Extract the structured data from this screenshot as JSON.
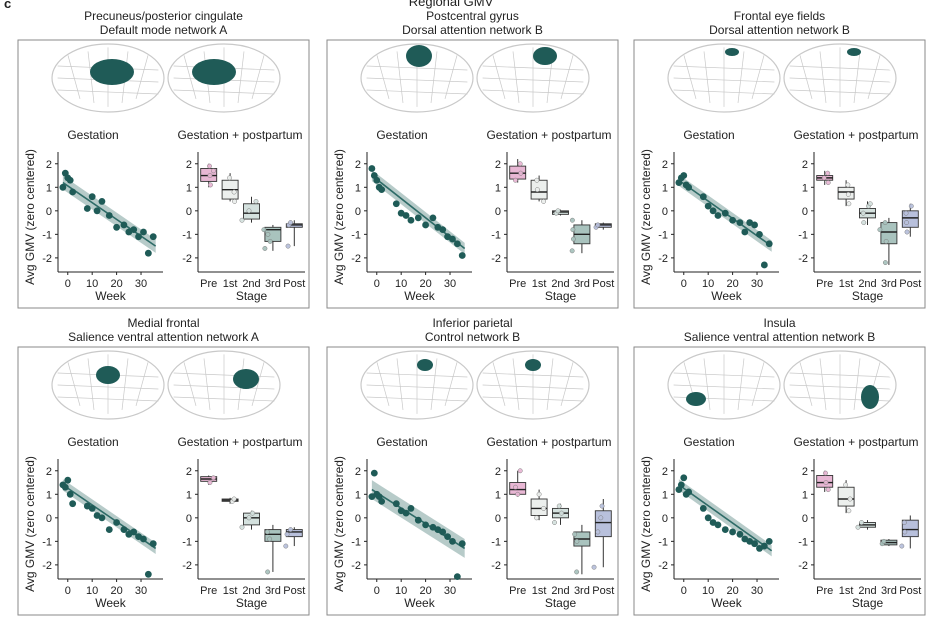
{
  "figure": {
    "panel_letter": "c",
    "header": "Regional GMV",
    "y_axis_label": "Avg GMV (zero centered)",
    "week_label": "Week",
    "stage_label": "Stage",
    "subplot_titles": [
      "Gestation",
      "Gestation + postpartum"
    ],
    "colors": {
      "dot": "#1f5b57",
      "regression_line": "#2e6b67",
      "ci_band": "#9fbab7",
      "brain_outline": "#c9c9c9",
      "highlight": "#1f5b57",
      "frame": "#8a8a8a",
      "stage_boxes": [
        "#e8b7d4",
        "#ecefed",
        "#d4e1de",
        "#a9c3be",
        "#b8c0dc"
      ]
    }
  },
  "chart_data": [
    {
      "type": "scatter+box",
      "title": "Precuneus/posterior cingulate",
      "network": "Default mode network A",
      "highlight": {
        "left": "medial-posterior",
        "right": "medial-posterior"
      },
      "scatter": {
        "xlabel": "Week",
        "ylabel": "Avg GMV (zero centered)",
        "xticks": [
          0,
          10,
          20,
          30
        ],
        "xlim": [
          -4,
          39
        ],
        "yticks": [
          -2,
          -1,
          0,
          1,
          2
        ],
        "ylim": [
          -2.6,
          2.5
        ],
        "x": [
          -2,
          -1,
          0,
          1,
          2,
          8,
          10,
          12,
          14,
          17,
          20,
          23,
          25,
          27,
          29,
          31,
          33,
          35
        ],
        "y": [
          1.0,
          1.6,
          1.4,
          1.3,
          0.8,
          0.1,
          0.6,
          0.0,
          0.4,
          -0.2,
          -0.7,
          -0.6,
          -0.9,
          -0.8,
          -1.1,
          -0.9,
          -1.8,
          -1.1
        ],
        "fit": {
          "x0": -2,
          "y0": 1.2,
          "x1": 36,
          "y1": -1.5
        },
        "ci": 0.18
      },
      "box": {
        "categories": [
          "Pre",
          "1st",
          "2nd",
          "3rd",
          "Post"
        ],
        "ylim": [
          -2.6,
          2.5
        ],
        "stats": [
          {
            "min": 1.0,
            "q1": 1.25,
            "med": 1.5,
            "q3": 1.8,
            "max": 2.0,
            "pts": [
              1.1,
              1.5,
              1.7,
              1.9
            ]
          },
          {
            "min": 0.4,
            "q1": 0.5,
            "med": 0.9,
            "q3": 1.3,
            "max": 1.6,
            "pts": [
              0.4,
              0.8,
              1.4
            ]
          },
          {
            "min": -0.5,
            "q1": -0.35,
            "med": -0.1,
            "q3": 0.3,
            "max": 0.6,
            "pts": [
              -0.4,
              0.0,
              0.4
            ]
          },
          {
            "min": -1.7,
            "q1": -1.3,
            "med": -0.8,
            "q3": -0.7,
            "max": -0.6,
            "pts": [
              -1.6,
              -1.3,
              -1.0,
              -0.8
            ]
          },
          {
            "min": -1.5,
            "q1": -0.7,
            "med": -0.6,
            "q3": -0.55,
            "max": -0.4,
            "pts": [
              -1.5,
              -0.6,
              -0.5
            ]
          }
        ]
      }
    },
    {
      "type": "scatter+box",
      "title": "Postcentral gyrus",
      "network": "Dorsal attention network B",
      "highlight": {
        "left": "dorsal-central",
        "right": "dorsal-medial"
      },
      "scatter": {
        "xlabel": "Week",
        "ylabel": "Avg GMV (zero centered)",
        "xticks": [
          0,
          10,
          20,
          30
        ],
        "xlim": [
          -4,
          39
        ],
        "yticks": [
          -2,
          -1,
          0,
          1,
          2
        ],
        "ylim": [
          -2.6,
          2.5
        ],
        "x": [
          -2,
          -1,
          0,
          1,
          2,
          8,
          10,
          12,
          14,
          17,
          20,
          23,
          25,
          27,
          29,
          31,
          33,
          35
        ],
        "y": [
          1.8,
          1.5,
          1.3,
          1.0,
          0.9,
          0.3,
          -0.1,
          -0.2,
          -0.4,
          -0.3,
          -0.6,
          -0.3,
          -0.7,
          -0.8,
          -1.1,
          -1.2,
          -1.4,
          -1.9
        ],
        "fit": {
          "x0": -2,
          "y0": 1.5,
          "x1": 36,
          "y1": -1.6
        },
        "ci": 0.15
      },
      "box": {
        "categories": [
          "Pre",
          "1st",
          "2nd",
          "3rd",
          "Post"
        ],
        "ylim": [
          -2.6,
          2.5
        ],
        "stats": [
          {
            "min": 1.2,
            "q1": 1.35,
            "med": 1.6,
            "q3": 1.9,
            "max": 2.2,
            "pts": [
              1.3,
              1.6,
              2.0
            ]
          },
          {
            "min": 0.4,
            "q1": 0.5,
            "med": 0.8,
            "q3": 1.3,
            "max": 1.5,
            "pts": [
              0.4,
              0.9,
              1.3
            ]
          },
          {
            "min": -0.2,
            "q1": -0.15,
            "med": -0.05,
            "q3": 0.0,
            "max": 0.05,
            "pts": [
              -0.1,
              0.0
            ]
          },
          {
            "min": -1.8,
            "q1": -1.4,
            "med": -1.0,
            "q3": -0.6,
            "max": -0.4,
            "pts": [
              -1.7,
              -1.2,
              -0.8,
              -0.4
            ]
          },
          {
            "min": -0.8,
            "q1": -0.7,
            "med": -0.6,
            "q3": -0.55,
            "max": -0.5,
            "pts": [
              -0.7,
              -0.6
            ]
          }
        ]
      }
    },
    {
      "type": "scatter+box",
      "title": "Frontal eye fields",
      "network": "Dorsal attention network B",
      "highlight": {
        "left": "dorsal-posterior-small",
        "right": "dorsal-posterior-small"
      },
      "scatter": {
        "xlabel": "Week",
        "ylabel": "Avg GMV (zero centered)",
        "xticks": [
          0,
          10,
          20,
          30
        ],
        "xlim": [
          -4,
          39
        ],
        "yticks": [
          -2,
          -1,
          0,
          1,
          2
        ],
        "ylim": [
          -2.6,
          2.5
        ],
        "x": [
          -2,
          -1,
          0,
          1,
          2,
          8,
          10,
          12,
          14,
          17,
          20,
          23,
          25,
          27,
          29,
          31,
          33,
          35
        ],
        "y": [
          1.2,
          1.4,
          1.5,
          1.1,
          1.0,
          0.6,
          0.2,
          0.0,
          -0.2,
          -0.1,
          -0.4,
          -0.5,
          -0.9,
          -0.5,
          -0.6,
          -1.0,
          -2.3,
          -1.4
        ],
        "fit": {
          "x0": -2,
          "y0": 1.3,
          "x1": 36,
          "y1": -1.5
        },
        "ci": 0.15
      },
      "box": {
        "categories": [
          "Pre",
          "1st",
          "2nd",
          "3rd",
          "Post"
        ],
        "ylim": [
          -2.6,
          2.5
        ],
        "stats": [
          {
            "min": 1.1,
            "q1": 1.3,
            "med": 1.4,
            "q3": 1.5,
            "max": 1.7,
            "pts": [
              1.2,
              1.4,
              1.6
            ]
          },
          {
            "min": 0.2,
            "q1": 0.5,
            "med": 0.8,
            "q3": 1.0,
            "max": 1.3,
            "pts": [
              0.3,
              0.7,
              1.1
            ]
          },
          {
            "min": -0.6,
            "q1": -0.3,
            "med": -0.1,
            "q3": 0.1,
            "max": 0.4,
            "pts": [
              -0.5,
              -0.1,
              0.2,
              0.3
            ]
          },
          {
            "min": -2.3,
            "q1": -1.4,
            "med": -0.9,
            "q3": -0.5,
            "max": -0.3,
            "pts": [
              -2.2,
              -1.3,
              -0.8,
              -0.5
            ]
          },
          {
            "min": -1.1,
            "q1": -0.7,
            "med": -0.3,
            "q3": 0.0,
            "max": 0.3,
            "pts": [
              -0.9,
              -0.5,
              -0.1,
              0.2
            ]
          }
        ]
      }
    },
    {
      "type": "scatter+box",
      "title": "Medial frontal",
      "network": "Salience ventral attention network A",
      "highlight": {
        "left": "dorsal-frontal",
        "right": "medial-frontal"
      },
      "scatter": {
        "xlabel": "Week",
        "ylabel": "Avg GMV (zero centered)",
        "xticks": [
          0,
          10,
          20,
          30
        ],
        "xlim": [
          -4,
          39
        ],
        "yticks": [
          -2,
          -1,
          0,
          1,
          2
        ],
        "ylim": [
          -2.6,
          2.5
        ],
        "x": [
          -2,
          -1,
          0,
          1,
          2,
          8,
          10,
          12,
          14,
          17,
          20,
          23,
          25,
          27,
          29,
          31,
          33,
          35
        ],
        "y": [
          1.4,
          1.3,
          1.6,
          1.0,
          0.6,
          0.5,
          0.4,
          0.1,
          0.0,
          -0.5,
          -0.2,
          -0.5,
          -0.7,
          -0.6,
          -0.8,
          -0.9,
          -2.4,
          -1.1
        ],
        "fit": {
          "x0": -2,
          "y0": 1.4,
          "x1": 36,
          "y1": -1.3
        },
        "ci": 0.15
      },
      "box": {
        "categories": [
          "Pre",
          "1st",
          "2nd",
          "3rd",
          "Post"
        ],
        "ylim": [
          -2.6,
          2.5
        ],
        "stats": [
          {
            "min": 1.4,
            "q1": 1.55,
            "med": 1.65,
            "q3": 1.75,
            "max": 1.8,
            "pts": [
              1.5,
              1.7
            ]
          },
          {
            "min": 0.6,
            "q1": 0.7,
            "med": 0.75,
            "q3": 0.8,
            "max": 0.85,
            "pts": [
              0.7,
              0.8
            ]
          },
          {
            "min": -0.5,
            "q1": -0.3,
            "med": 0.0,
            "q3": 0.2,
            "max": 0.3,
            "pts": [
              -0.4,
              0.0,
              0.2
            ]
          },
          {
            "min": -2.3,
            "q1": -1.0,
            "med": -0.7,
            "q3": -0.5,
            "max": -0.3,
            "pts": [
              -2.3,
              -0.9,
              -0.6
            ]
          },
          {
            "min": -1.2,
            "q1": -0.8,
            "med": -0.6,
            "q3": -0.5,
            "max": -0.4,
            "pts": [
              -1.2,
              -0.7,
              -0.5
            ]
          }
        ]
      }
    },
    {
      "type": "scatter+box",
      "title": "Inferior parietal",
      "network": "Control network B",
      "highlight": {
        "left": "dorsal-center-small",
        "right": "dorsal-center-small"
      },
      "scatter": {
        "xlabel": "Week",
        "ylabel": "Avg GMV (zero centered)",
        "xticks": [
          0,
          10,
          20,
          30
        ],
        "xlim": [
          -4,
          39
        ],
        "yticks": [
          -2,
          -1,
          0,
          1,
          2
        ],
        "ylim": [
          -2.6,
          2.5
        ],
        "x": [
          -2,
          -1,
          0,
          1,
          2,
          8,
          10,
          12,
          14,
          17,
          20,
          23,
          25,
          27,
          29,
          31,
          33,
          35
        ],
        "y": [
          0.9,
          1.9,
          1.0,
          0.9,
          0.7,
          0.6,
          0.3,
          0.2,
          0.4,
          -0.1,
          -0.3,
          -0.4,
          -0.5,
          -0.6,
          -0.8,
          -1.0,
          -2.5,
          -1.1
        ],
        "fit": {
          "x0": -2,
          "y0": 1.2,
          "x1": 36,
          "y1": -1.3
        },
        "ci": 0.25
      },
      "box": {
        "categories": [
          "Pre",
          "1st",
          "2nd",
          "3rd",
          "Post"
        ],
        "ylim": [
          -2.6,
          2.5
        ],
        "stats": [
          {
            "min": 0.9,
            "q1": 1.0,
            "med": 1.2,
            "q3": 1.5,
            "max": 2.0,
            "pts": [
              1.0,
              1.3,
              2.0
            ]
          },
          {
            "min": -0.1,
            "q1": 0.1,
            "med": 0.4,
            "q3": 0.8,
            "max": 1.2,
            "pts": [
              0.0,
              0.4,
              1.0
            ]
          },
          {
            "min": -0.3,
            "q1": 0.0,
            "med": 0.2,
            "q3": 0.4,
            "max": 0.6,
            "pts": [
              -0.2,
              0.2,
              0.5
            ]
          },
          {
            "min": -2.4,
            "q1": -1.2,
            "med": -0.9,
            "q3": -0.6,
            "max": -0.3,
            "pts": [
              -2.3,
              -1.0,
              -0.7
            ]
          },
          {
            "min": -2.1,
            "q1": -0.8,
            "med": -0.2,
            "q3": 0.3,
            "max": 0.8,
            "pts": [
              -2.1,
              -0.6,
              0.0,
              0.5
            ]
          }
        ]
      }
    },
    {
      "type": "scatter+box",
      "title": "Insula",
      "network": "Salience ventral attention network B",
      "highlight": {
        "left": "lateral-temporal",
        "right": "lateral-insula"
      },
      "scatter": {
        "xlabel": "Week",
        "ylabel": "Avg GMV (zero centered)",
        "xticks": [
          0,
          10,
          20,
          30
        ],
        "xlim": [
          -4,
          39
        ],
        "yticks": [
          -2,
          -1,
          0,
          1,
          2
        ],
        "ylim": [
          -2.6,
          2.5
        ],
        "x": [
          -2,
          -1,
          0,
          1,
          2,
          8,
          10,
          12,
          14,
          17,
          20,
          23,
          25,
          27,
          29,
          31,
          33,
          35
        ],
        "y": [
          1.2,
          1.4,
          1.7,
          1.0,
          1.1,
          0.4,
          0.0,
          -0.2,
          -0.3,
          -0.5,
          -0.6,
          -0.7,
          -0.9,
          -1.0,
          -1.1,
          -1.3,
          -1.2,
          -1.0
        ],
        "fit": {
          "x0": -2,
          "y0": 1.4,
          "x1": 36,
          "y1": -1.4
        },
        "ci": 0.15
      },
      "box": {
        "categories": [
          "Pre",
          "1st",
          "2nd",
          "3rd",
          "Post"
        ],
        "ylim": [
          -2.6,
          2.5
        ],
        "stats": [
          {
            "min": 1.1,
            "q1": 1.3,
            "med": 1.5,
            "q3": 1.8,
            "max": 2.0,
            "pts": [
              1.2,
              1.5,
              1.9
            ]
          },
          {
            "min": 0.2,
            "q1": 0.5,
            "med": 0.8,
            "q3": 1.3,
            "max": 1.6,
            "pts": [
              0.3,
              0.8,
              1.4
            ]
          },
          {
            "min": -0.5,
            "q1": -0.4,
            "med": -0.3,
            "q3": -0.2,
            "max": -0.1,
            "pts": [
              -0.4,
              -0.2
            ]
          },
          {
            "min": -1.2,
            "q1": -1.15,
            "med": -1.05,
            "q3": -0.95,
            "max": -0.9,
            "pts": [
              -1.1,
              -1.0
            ]
          },
          {
            "min": -1.3,
            "q1": -0.8,
            "med": -0.5,
            "q3": -0.1,
            "max": 0.1,
            "pts": [
              -1.2,
              -0.6,
              -0.2
            ]
          }
        ]
      }
    }
  ]
}
